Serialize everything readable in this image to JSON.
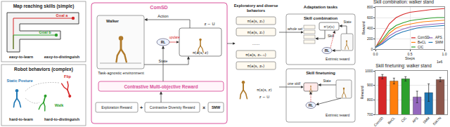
{
  "diagram": {
    "map_panel": {
      "title": "Map reaching skills (simple)",
      "goal_a": "Goal a",
      "goal_b": "Goal b",
      "learn": "easy-to-learn",
      "distinguish": "easy-to-distinguish"
    },
    "robot_panel": {
      "title": "Robot behaviors (complex)",
      "static": "Static Posture",
      "flip": "Flip",
      "walk": "Walk",
      "learn": "hard-to-learn",
      "distinguish": "hard-to-distinguish"
    },
    "comsd": {
      "title": "ComSD",
      "agent": "Walker",
      "environment": "Task-agnostic environment",
      "action": "Action",
      "state": "State",
      "rl": "RL",
      "update": "update",
      "prior": "z ~ U",
      "policy": "π(a|s, z)",
      "reward": "Contrastive Multi-objective Reward",
      "exploration": "Exploration Reward",
      "plus": "+",
      "diversity": "Contrastive Diversity Reward",
      "times": "×",
      "smw": "SMW"
    },
    "behaviors": {
      "title": [
        "Exploratory and diverse",
        "behaviors"
      ],
      "policies": [
        "π(a|s, z₁)",
        "π(a|s, z₂)",
        "......",
        "π(a|s, zₙ₋₁)",
        "π(a|s, zₙ)"
      ],
      "policy": "π(a|s, z)",
      "prior": "z ~ U"
    },
    "adaptation": {
      "title": "Adaptation tasks",
      "combination": {
        "title": "Skill combination",
        "input": "whole set",
        "skill": "Skill",
        "state": "State",
        "policy": "π'(z|s)",
        "rl": "RL",
        "reward": "Extrinsic reward"
      },
      "finetuning": {
        "title": "Skill finetuning",
        "input": "one skill",
        "state": "State",
        "rl": "RL",
        "reward": "Extrinsic reward"
      }
    }
  },
  "chart_data": [
    {
      "type": "line",
      "title": "Skill combination: walker stand",
      "x_label": "Steps",
      "y_label": "Reward",
      "x": [
        0,
        0.1,
        0.2,
        0.3,
        0.4,
        0.5,
        0.6,
        0.7,
        0.8,
        0.9,
        1.0
      ],
      "series": [
        {
          "name": "ComSD",
          "color": "#d62728",
          "values": [
            30,
            250,
            480,
            600,
            660,
            700,
            720,
            740,
            750,
            760,
            770
          ]
        },
        {
          "name": "BeCL",
          "color": "#ff7f0e",
          "values": [
            30,
            150,
            300,
            400,
            450,
            480,
            500,
            520,
            530,
            540,
            550
          ]
        },
        {
          "name": "CIC",
          "color": "#2ca02c",
          "values": [
            30,
            180,
            350,
            450,
            500,
            540,
            560,
            580,
            590,
            600,
            600
          ]
        },
        {
          "name": "APS",
          "color": "#9467bd",
          "values": [
            30,
            120,
            250,
            330,
            380,
            420,
            440,
            460,
            470,
            480,
            490
          ]
        },
        {
          "name": "SMM",
          "color": "#1f77b4",
          "values": [
            30,
            100,
            200,
            280,
            330,
            370,
            400,
            420,
            430,
            440,
            450
          ]
        }
      ],
      "xlim": [
        0,
        1.0
      ],
      "xticks": [
        {
          "value": 0,
          "label": "0.0"
        },
        {
          "value": 0.5,
          "label": "0.5"
        },
        {
          "value": 1.0,
          "label": "1.0"
        }
      ],
      "ylim": [
        0,
        800
      ],
      "yticks": [
        0,
        200,
        400,
        600,
        800
      ],
      "annotations": [
        {
          "text": "1e6"
        }
      ],
      "grid": true,
      "legend": "lower right"
    },
    {
      "type": "bar",
      "title": "Skill finetuning: walker stand",
      "y_label": "Reward",
      "categories": [
        "ComSD",
        "BeCL",
        "CIC",
        "APS",
        "SMM",
        "DIAYN"
      ],
      "values": [
        960,
        930,
        945,
        820,
        850,
        940
      ],
      "errors": [
        15,
        20,
        15,
        40,
        60,
        15
      ],
      "colors": [
        "#d62728",
        "#ff7f0e",
        "#2ca02c",
        "#9467bd",
        "#1f77b4",
        "#8c564b"
      ],
      "ylim": [
        700,
        1000
      ],
      "yticks": [
        700,
        800,
        900,
        1000
      ],
      "grid": true
    }
  ]
}
